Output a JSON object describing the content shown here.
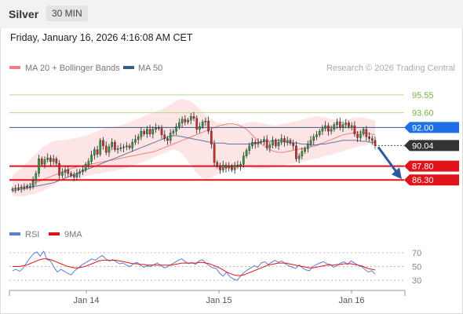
{
  "header": {
    "instrument": "Silver",
    "timeframe": "30 MIN",
    "datetime": "Friday, January 16, 2026 4:16:08 AM CET"
  },
  "legend": {
    "ma20_bb": "MA 20 + Bollinger Bands",
    "ma50": "MA 50",
    "credit": "Research © 2026 Trading Central",
    "rsi": "RSI",
    "rsi_ma": "9MA"
  },
  "colors": {
    "candle_up": "#2e9e3f",
    "candle_down": "#d42b2b",
    "ma20": "#f08080",
    "bollinger_fill": "#fde0e0",
    "ma50": "#3a5a8c",
    "resistance_line": "#b7d98c",
    "pivot": "#1f6fe5",
    "support": "#e0121a",
    "current_price_tag": "#333333",
    "rsi": "#5b7fd6",
    "rsi_ma": "#e0121a",
    "arrow": "#2a5aa0"
  },
  "chart_data": {
    "type": "candlestick",
    "x_ticks": [
      "Jan 14",
      "Jan 15",
      "Jan 16"
    ],
    "price_ylim": [
      83.5,
      97.5
    ],
    "levels": [
      {
        "label": "95.55",
        "value": 95.55,
        "kind": "resistance"
      },
      {
        "label": "93.60",
        "value": 93.6,
        "kind": "resistance"
      },
      {
        "label": "92.00",
        "value": 92.0,
        "kind": "pivot"
      },
      {
        "label": "90.04",
        "value": 90.04,
        "kind": "current"
      },
      {
        "label": "87.80",
        "value": 87.8,
        "kind": "support"
      },
      {
        "label": "86.30",
        "value": 86.3,
        "kind": "support"
      }
    ],
    "forecast": {
      "from": 90.04,
      "to": 86.3
    },
    "closes": [
      85.3,
      85.4,
      85.4,
      85.5,
      85.5,
      85.6,
      85.6,
      86.2,
      87.0,
      88.6,
      88.0,
      88.5,
      88.7,
      88.3,
      88.6,
      88.1,
      86.8,
      87.1,
      87.4,
      87.0,
      86.8,
      86.6,
      87.0,
      87.2,
      87.4,
      88.0,
      88.3,
      89.0,
      89.6,
      89.1,
      90.6,
      90.0,
      89.3,
      89.9,
      90.4,
      89.6,
      89.7,
      89.8,
      89.9,
      90.0,
      89.8,
      90.4,
      90.7,
      91.0,
      91.6,
      91.3,
      91.8,
      91.3,
      91.8,
      92.0,
      91.9,
      91.2,
      90.8,
      90.6,
      91.4,
      91.6,
      92.1,
      92.5,
      92.9,
      92.6,
      92.8,
      93.2,
      93.0,
      91.8,
      92.1,
      92.6,
      92.7,
      91.6,
      90.2,
      88.2,
      87.8,
      87.4,
      87.9,
      87.6,
      87.8,
      87.4,
      87.9,
      87.8,
      88.0,
      88.9,
      89.5,
      90.0,
      90.4,
      90.2,
      90.4,
      90.5,
      90.7,
      89.8,
      90.1,
      90.6,
      90.0,
      90.4,
      90.8,
      90.4,
      90.6,
      90.3,
      90.0,
      88.6,
      88.9,
      89.4,
      89.7,
      90.2,
      90.6,
      91.0,
      91.2,
      91.6,
      91.9,
      92.2,
      91.6,
      91.8,
      92.3,
      92.6,
      92.0,
      92.3,
      92.5,
      92.1,
      92.2,
      91.3,
      90.9,
      91.3,
      91.8,
      91.0,
      90.8,
      90.6,
      90.04
    ],
    "ma20": [
      85.3,
      85.4,
      85.5,
      85.6,
      85.8,
      86.0,
      86.2,
      86.4,
      86.6,
      86.8,
      87.0,
      87.2,
      87.4,
      87.6,
      87.7,
      87.8,
      87.9,
      88.0,
      88.1,
      88.2,
      88.3,
      88.4,
      88.5,
      88.6,
      88.7,
      88.8,
      88.9,
      89.0,
      89.1,
      89.2,
      89.3,
      89.4,
      89.6,
      89.8,
      90.0,
      90.2,
      90.4,
      90.6,
      90.8,
      91.0,
      91.2,
      91.4,
      91.6,
      91.8,
      92.0,
      92.2,
      92.3,
      92.4,
      92.4,
      92.3,
      92.1,
      91.8,
      91.3,
      90.8,
      90.3,
      89.9,
      89.6,
      89.4,
      89.3,
      89.3,
      89.4,
      89.5,
      89.6,
      89.7,
      89.8,
      89.9,
      90.0,
      90.2,
      90.4,
      90.6,
      90.8,
      91.0,
      91.2,
      91.3,
      91.4,
      91.5,
      91.5,
      91.4,
      91.3,
      91.2
    ],
    "ma50": [
      85.1,
      85.2,
      85.3,
      85.4,
      85.5,
      85.6,
      85.7,
      85.8,
      85.9,
      86.0,
      86.2,
      86.4,
      86.6,
      86.8,
      87.0,
      87.2,
      87.4,
      87.6,
      87.8,
      88.0,
      88.2,
      88.4,
      88.6,
      88.8,
      89.0,
      89.2,
      89.4,
      89.6,
      89.8,
      90.0,
      90.2,
      90.4,
      90.6,
      90.8,
      91.0,
      91.1,
      91.1,
      91.0,
      90.9,
      90.8,
      90.7,
      90.6,
      90.5,
      90.4,
      90.3,
      90.3,
      90.3,
      90.2,
      90.2,
      90.2,
      90.2,
      90.2,
      90.2,
      90.3,
      90.4,
      90.5,
      90.5,
      90.6,
      90.6,
      90.5,
      90.4,
      90.3,
      90.3,
      90.2,
      90.2,
      90.1,
      90.1,
      90.2,
      90.2,
      90.3,
      90.4,
      90.5,
      90.6,
      90.6,
      90.6,
      90.6,
      90.5,
      90.5,
      90.4,
      90.4
    ],
    "bb_upper": [
      86.8,
      87.2,
      87.6,
      88.1,
      88.6,
      89.1,
      89.6,
      90.0,
      90.3,
      90.5,
      90.6,
      90.6,
      90.7,
      90.8,
      90.9,
      91.0,
      91.1,
      91.3,
      91.5,
      91.7,
      91.9,
      92.0,
      92.1,
      92.2,
      92.3,
      92.5,
      92.7,
      92.9,
      93.1,
      93.3,
      93.5,
      93.7,
      93.9,
      94.1,
      94.4,
      94.7,
      95.0,
      95.1,
      95.0,
      94.8,
      94.4,
      93.9,
      93.4,
      93.0,
      92.7,
      92.5,
      92.4,
      92.3,
      92.3,
      92.3,
      92.4,
      92.5,
      92.6,
      92.6,
      92.5,
      92.4,
      92.3,
      92.2,
      92.3,
      92.4,
      92.5,
      92.6,
      92.7,
      92.8,
      93.0,
      93.1,
      93.2,
      93.2,
      93.1,
      93.0,
      92.9,
      92.8,
      92.8,
      92.9,
      93.0,
      93.1,
      93.1,
      93.0,
      92.9,
      92.8
    ],
    "bb_lower": [
      84.6,
      84.5,
      84.5,
      84.6,
      84.7,
      84.8,
      85.0,
      85.2,
      85.5,
      85.8,
      86.1,
      86.3,
      86.5,
      86.6,
      86.6,
      86.6,
      86.7,
      86.8,
      86.9,
      87.0,
      87.1,
      87.2,
      87.3,
      87.4,
      87.5,
      87.6,
      87.8,
      88.0,
      88.2,
      88.4,
      88.6,
      88.8,
      89.0,
      89.2,
      89.4,
      89.6,
      89.5,
      89.1,
      88.5,
      87.8,
      87.1,
      86.6,
      86.4,
      86.5,
      86.7,
      87.0,
      87.3,
      87.5,
      87.6,
      87.7,
      87.7,
      87.7,
      87.6,
      87.5,
      87.5,
      87.5,
      87.6,
      87.7,
      87.8,
      87.9,
      88.0,
      88.1,
      88.2,
      88.3,
      88.4,
      88.5,
      88.6,
      88.7,
      88.9,
      89.0,
      89.1,
      89.3,
      89.4,
      89.6,
      89.7,
      89.9,
      90.0,
      90.1,
      90.2,
      90.3
    ],
    "rsi": {
      "ylim": [
        20,
        80
      ],
      "ticks": [
        70,
        50,
        30
      ],
      "values": [
        44,
        46,
        43,
        47,
        55,
        62,
        68,
        71,
        65,
        72,
        60,
        58,
        49,
        42,
        46,
        43,
        40,
        38,
        44,
        48,
        52,
        55,
        58,
        61,
        59,
        63,
        66,
        61,
        58,
        60,
        57,
        54,
        55,
        52,
        50,
        54,
        56,
        52,
        49,
        51,
        50,
        53,
        55,
        51,
        48,
        50,
        53,
        56,
        59,
        61,
        57,
        54,
        56,
        53,
        58,
        60,
        55,
        51,
        48,
        47,
        40,
        36,
        42,
        35,
        32,
        30,
        36,
        41,
        45,
        48,
        51,
        49,
        55,
        57,
        53,
        56,
        59,
        56,
        58,
        54,
        51,
        49,
        47,
        52,
        48,
        45,
        44,
        50,
        53,
        55,
        57,
        54,
        53,
        49,
        51,
        55,
        57,
        53,
        58,
        55,
        52,
        50,
        46,
        42,
        44,
        39
      ],
      "ma9": [
        50,
        50,
        50,
        51,
        52,
        54,
        56,
        58,
        60,
        61,
        61,
        60,
        58,
        56,
        54,
        52,
        50,
        49,
        48,
        48,
        49,
        50,
        52,
        54,
        56,
        58,
        59,
        59,
        59,
        59,
        59,
        58,
        57,
        56,
        55,
        54,
        54,
        53,
        53,
        52,
        52,
        52,
        52,
        52,
        52,
        52,
        52,
        53,
        54,
        55,
        55,
        55,
        55,
        55,
        56,
        56,
        55,
        54,
        52,
        50,
        48,
        45,
        42,
        40,
        38,
        37,
        37,
        38,
        40,
        42,
        44,
        46,
        48,
        50,
        52,
        53,
        54,
        55,
        55,
        55,
        54,
        53,
        52,
        51,
        50,
        49,
        48,
        48,
        49,
        50,
        51,
        52,
        52,
        52,
        53,
        53,
        54,
        54,
        54,
        53,
        52,
        51,
        49,
        47,
        46,
        45
      ]
    }
  }
}
